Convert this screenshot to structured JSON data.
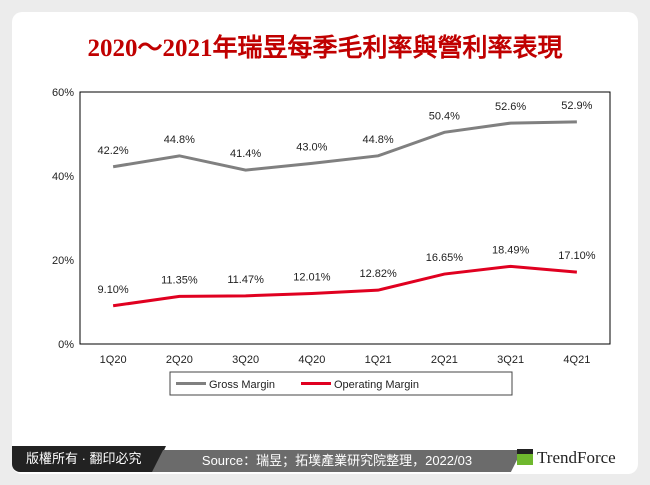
{
  "title": "2020～2021年瑞昱每季毛利率與營利率表現",
  "footer": {
    "copyright": "版權所有 · 翻印必究",
    "source": "Source：瑞昱；拓墣產業研究院整理，2022/03",
    "brand": "TrendForce"
  },
  "chart_data": {
    "type": "line",
    "categories": [
      "1Q20",
      "2Q20",
      "3Q20",
      "4Q20",
      "1Q21",
      "2Q21",
      "3Q21",
      "4Q21"
    ],
    "yticks": [
      "0%",
      "20%",
      "40%",
      "60%"
    ],
    "ylim": [
      0,
      60
    ],
    "legend_position": "bottom",
    "series": [
      {
        "name": "Gross Margin",
        "color": "#808080",
        "values": [
          42.2,
          44.8,
          41.4,
          43.0,
          44.8,
          50.4,
          52.6,
          52.9
        ],
        "labels": [
          "42.2%",
          "44.8%",
          "41.4%",
          "43.0%",
          "44.8%",
          "50.4%",
          "52.6%",
          "52.9%"
        ]
      },
      {
        "name": "Operating Margin",
        "color": "#e00020",
        "values": [
          9.1,
          11.35,
          11.47,
          12.01,
          12.82,
          16.65,
          18.49,
          17.1
        ],
        "labels": [
          "9.10%",
          "11.35%",
          "11.47%",
          "12.01%",
          "12.82%",
          "16.65%",
          "18.49%",
          "17.10%"
        ]
      }
    ]
  }
}
